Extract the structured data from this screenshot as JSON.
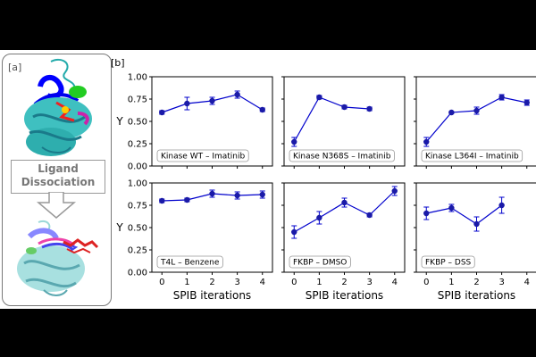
{
  "panel_a": {
    "label": "[a]",
    "process_label_line1": "Ligand",
    "process_label_line2": "Dissociation"
  },
  "panel_b_label": "[b]",
  "colors": {
    "series": "#0000cc",
    "marker": "#1a1aa8",
    "frame": "#000000"
  },
  "chart_data": [
    {
      "type": "line",
      "title": "Kinase WT – Imatinib",
      "x": [
        0,
        1,
        2,
        3,
        4
      ],
      "y": [
        0.6,
        0.7,
        0.73,
        0.8,
        0.63
      ],
      "err": [
        0.02,
        0.07,
        0.04,
        0.04,
        0.02
      ],
      "xlim": [
        -0.4,
        4.4
      ],
      "ylim": [
        0,
        1
      ],
      "ylabel": "Y",
      "xlabel": ""
    },
    {
      "type": "line",
      "title": "Kinase N368S – Imatinib",
      "x": [
        0,
        1,
        2,
        3
      ],
      "y": [
        0.27,
        0.77,
        0.66,
        0.64
      ],
      "err": [
        0.05,
        0.02,
        0.02,
        0.02
      ],
      "xlim": [
        -0.4,
        4.4
      ],
      "ylim": [
        0,
        1
      ],
      "ylabel": "",
      "xlabel": ""
    },
    {
      "type": "line",
      "title": "Kinase L364I – Imatinib",
      "x": [
        0,
        1,
        2,
        3,
        4
      ],
      "y": [
        0.27,
        0.6,
        0.62,
        0.77,
        0.71
      ],
      "err": [
        0.05,
        0.01,
        0.04,
        0.03,
        0.03
      ],
      "xlim": [
        -0.4,
        4.4
      ],
      "ylim": [
        0,
        1
      ],
      "ylabel": "",
      "xlabel": ""
    },
    {
      "type": "line",
      "title": "T4L – Benzene",
      "x": [
        0,
        1,
        2,
        3,
        4
      ],
      "y": [
        0.8,
        0.81,
        0.88,
        0.86,
        0.87
      ],
      "err": [
        0.02,
        0.02,
        0.04,
        0.04,
        0.04
      ],
      "xlim": [
        -0.4,
        4.4
      ],
      "ylim": [
        0,
        1
      ],
      "ylabel": "Y",
      "xlabel": "SPIB iterations"
    },
    {
      "type": "line",
      "title": "FKBP – DMSO",
      "x": [
        0,
        1,
        2,
        3,
        4
      ],
      "y": [
        0.45,
        0.61,
        0.78,
        0.64,
        0.91
      ],
      "err": [
        0.07,
        0.07,
        0.05,
        0.02,
        0.05
      ],
      "xlim": [
        -0.4,
        4.4
      ],
      "ylim": [
        0,
        1
      ],
      "ylabel": "",
      "xlabel": "SPIB iterations"
    },
    {
      "type": "line",
      "title": "FKBP – DSS",
      "x": [
        0,
        1,
        2,
        3
      ],
      "y": [
        0.66,
        0.72,
        0.54,
        0.75
      ],
      "err": [
        0.07,
        0.04,
        0.08,
        0.09
      ],
      "xlim": [
        -0.4,
        4.4
      ],
      "ylim": [
        0,
        1
      ],
      "ylabel": "",
      "xlabel": "SPIB iterations"
    }
  ],
  "ticks": {
    "x": [
      "0",
      "1",
      "2",
      "3",
      "4"
    ],
    "y": [
      "0.00",
      "0.25",
      "0.50",
      "0.75",
      "1.00"
    ]
  }
}
